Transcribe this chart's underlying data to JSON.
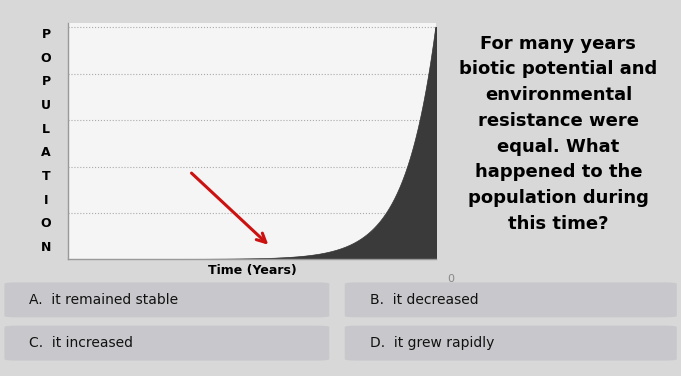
{
  "background_color": "#d8d8d8",
  "chart_bg_color": "#f5f5f5",
  "outer_bg_color": "#e8e8e8",
  "chart_border_color": "#999999",
  "title_text": "For many years\nbiotic potential and\nenvironmental\nresistance were\nequal. What\nhappened to the\npopulation during\nthis time?",
  "title_fontsize": 13,
  "ylabel_letters": [
    "P",
    "O",
    "P",
    "U",
    "L",
    "A",
    "T",
    "I",
    "O",
    "N"
  ],
  "xlabel": "Time (Years)",
  "xlabel_fontsize": 9,
  "ylabel_fontsize": 9,
  "answer_options": [
    "A.  it remained stable",
    "B.  it decreased",
    "C.  it increased",
    "D.  it grew rapidly"
  ],
  "answer_bg_color": "#c8c8cc",
  "answer_text_color": "#111111",
  "answer_fontsize": 10,
  "grid_color": "#aaaaaa",
  "curve_color": "#3a3a3a",
  "arrow_color": "#cc1111",
  "zero_label_color": "#888888",
  "zero_label_fontsize": 8
}
